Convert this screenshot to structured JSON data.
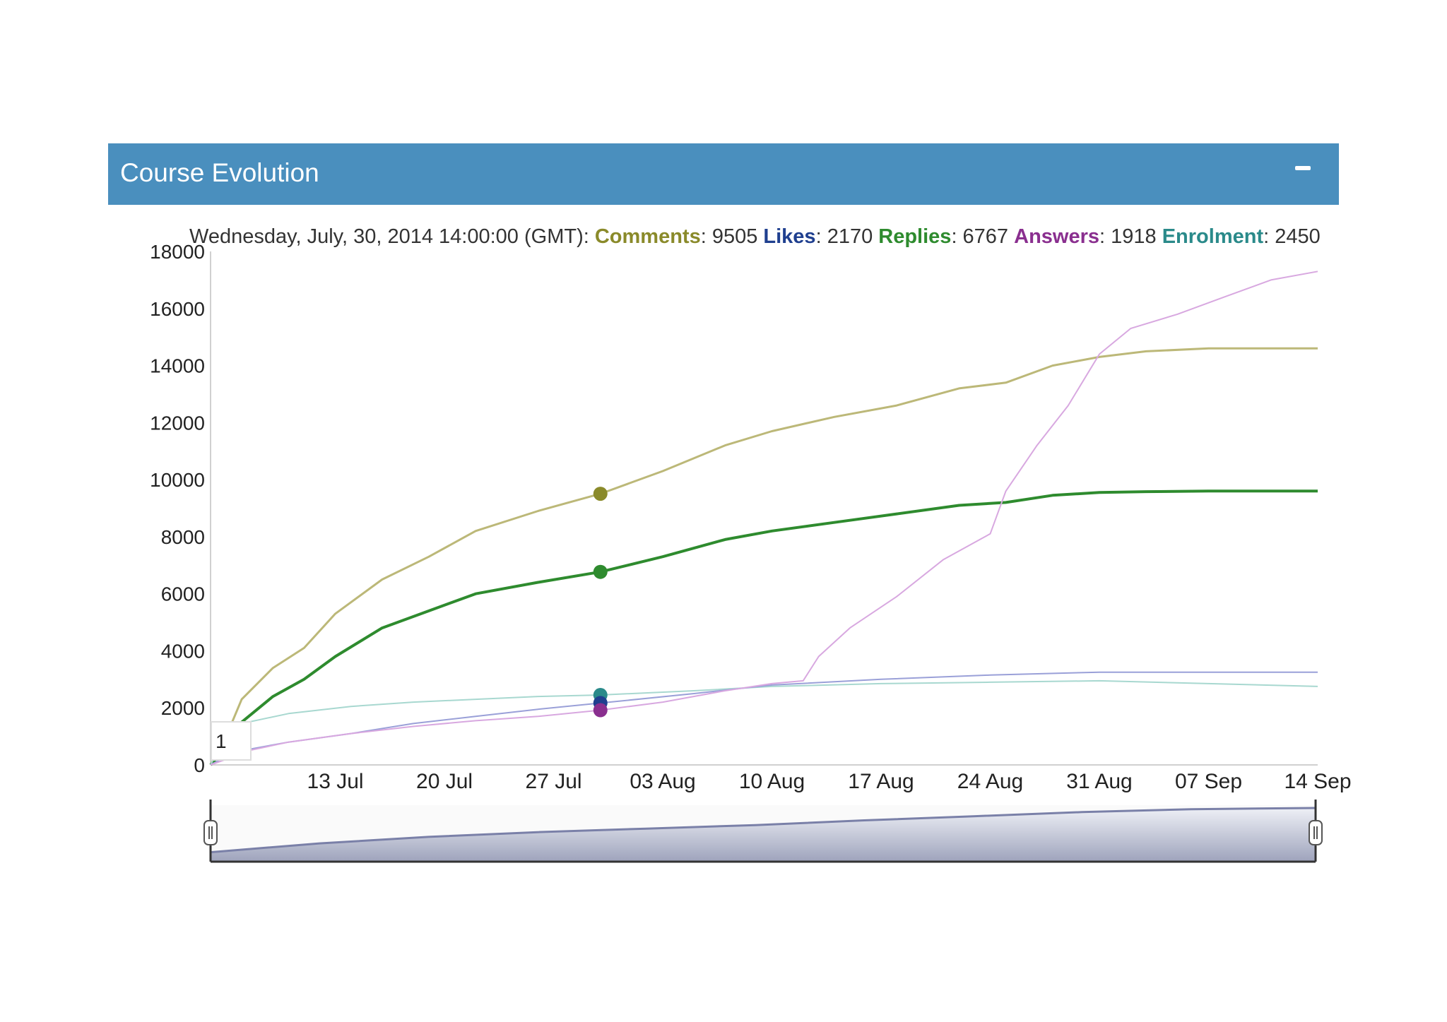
{
  "panel": {
    "title": "Course Evolution",
    "collapse_icon": "minus-icon"
  },
  "legend": {
    "date": "Wednesday, July, 30, 2014 14:00:00 (GMT)",
    "items": [
      {
        "name": "Comments",
        "value": "9505",
        "color": "#8a8a2a"
      },
      {
        "name": "Likes",
        "value": "2170",
        "color": "#1f3f8f"
      },
      {
        "name": "Replies",
        "value": "6767",
        "color": "#2e8b2e"
      },
      {
        "name": "Answers",
        "value": "1918",
        "color": "#8a2f8f"
      },
      {
        "name": "Enrolment",
        "value": "2450",
        "color": "#2a8a8a"
      }
    ]
  },
  "roll_period": "1",
  "chart_data": {
    "type": "line",
    "x_start": "2014-07-07",
    "x_end": "2014-09-14",
    "xlim": [
      "2014-07-05",
      "2014-09-14"
    ],
    "ylim": [
      0,
      18000
    ],
    "y_ticks": [
      0,
      2000,
      4000,
      6000,
      8000,
      10000,
      12000,
      14000,
      16000,
      18000
    ],
    "x_ticks": [
      {
        "date": "2014-07-13",
        "label": "13 Jul"
      },
      {
        "date": "2014-07-20",
        "label": "20 Jul"
      },
      {
        "date": "2014-07-27",
        "label": "27 Jul"
      },
      {
        "date": "2014-08-03",
        "label": "03 Aug"
      },
      {
        "date": "2014-08-10",
        "label": "10 Aug"
      },
      {
        "date": "2014-08-17",
        "label": "17 Aug"
      },
      {
        "date": "2014-08-24",
        "label": "24 Aug"
      },
      {
        "date": "2014-08-31",
        "label": "31 Aug"
      },
      {
        "date": "2014-09-07",
        "label": "07 Sep"
      },
      {
        "date": "2014-09-14",
        "label": "14 Sep"
      }
    ],
    "highlight_date": "2014-07-30",
    "series": [
      {
        "name": "Comments",
        "color": "#bcb878",
        "marker_color": "#8a8a2a",
        "width": 3,
        "x": [
          "2014-07-05",
          "2014-07-06",
          "2014-07-07",
          "2014-07-09",
          "2014-07-11",
          "2014-07-13",
          "2014-07-16",
          "2014-07-19",
          "2014-07-22",
          "2014-07-26",
          "2014-07-30",
          "2014-08-03",
          "2014-08-07",
          "2014-08-10",
          "2014-08-14",
          "2014-08-18",
          "2014-08-22",
          "2014-08-25",
          "2014-08-28",
          "2014-08-31",
          "2014-09-03",
          "2014-09-07",
          "2014-09-14"
        ],
        "y": [
          0,
          1000,
          2300,
          3400,
          4100,
          5300,
          6500,
          7300,
          8200,
          8900,
          9505,
          10300,
          11200,
          11700,
          12200,
          12600,
          13200,
          13400,
          14000,
          14300,
          14500,
          14600,
          14600
        ]
      },
      {
        "name": "Replies",
        "color": "#2e8b2e",
        "marker_color": "#2e8b2e",
        "width": 4,
        "x": [
          "2014-07-05",
          "2014-07-06",
          "2014-07-07",
          "2014-07-09",
          "2014-07-11",
          "2014-07-13",
          "2014-07-16",
          "2014-07-19",
          "2014-07-22",
          "2014-07-26",
          "2014-07-30",
          "2014-08-03",
          "2014-08-07",
          "2014-08-10",
          "2014-08-14",
          "2014-08-18",
          "2014-08-22",
          "2014-08-25",
          "2014-08-28",
          "2014-08-31",
          "2014-09-03",
          "2014-09-07",
          "2014-09-14"
        ],
        "y": [
          0,
          600,
          1500,
          2400,
          3000,
          3800,
          4800,
          5400,
          6000,
          6400,
          6767,
          7300,
          7900,
          8200,
          8500,
          8800,
          9100,
          9200,
          9450,
          9550,
          9580,
          9600,
          9600
        ]
      },
      {
        "name": "Enrolment",
        "color": "#a8d8d0",
        "marker_color": "#2a8a8a",
        "width": 2,
        "x": [
          "2014-07-05",
          "2014-07-06",
          "2014-07-07",
          "2014-07-10",
          "2014-07-14",
          "2014-07-18",
          "2014-07-22",
          "2014-07-26",
          "2014-07-30",
          "2014-08-05",
          "2014-08-10",
          "2014-08-17",
          "2014-08-24",
          "2014-08-31",
          "2014-09-07",
          "2014-09-14"
        ],
        "y": [
          0,
          1100,
          1450,
          1800,
          2050,
          2200,
          2300,
          2400,
          2450,
          2600,
          2750,
          2850,
          2900,
          2950,
          2850,
          2750
        ]
      },
      {
        "name": "Likes",
        "color": "#9aa0d8",
        "marker_color": "#1f3f8f",
        "width": 2,
        "x": [
          "2014-07-05",
          "2014-07-06",
          "2014-07-07",
          "2014-07-10",
          "2014-07-14",
          "2014-07-18",
          "2014-07-22",
          "2014-07-26",
          "2014-07-30",
          "2014-08-05",
          "2014-08-10",
          "2014-08-17",
          "2014-08-24",
          "2014-08-31",
          "2014-09-07",
          "2014-09-14"
        ],
        "y": [
          0,
          300,
          500,
          800,
          1100,
          1450,
          1700,
          1950,
          2170,
          2500,
          2800,
          3000,
          3150,
          3250,
          3250,
          3250
        ]
      },
      {
        "name": "Answers",
        "color": "#d8a8e0",
        "marker_color": "#8a2f8f",
        "width": 2,
        "x": [
          "2014-07-05",
          "2014-07-06",
          "2014-07-07",
          "2014-07-10",
          "2014-07-14",
          "2014-07-18",
          "2014-07-22",
          "2014-07-26",
          "2014-07-30",
          "2014-08-03",
          "2014-08-07",
          "2014-08-10",
          "2014-08-12",
          "2014-08-13",
          "2014-08-15",
          "2014-08-18",
          "2014-08-21",
          "2014-08-24",
          "2014-08-25",
          "2014-08-27",
          "2014-08-29",
          "2014-08-31",
          "2014-09-02",
          "2014-09-05",
          "2014-09-08",
          "2014-09-11",
          "2014-09-14"
        ],
        "y": [
          0,
          200,
          450,
          800,
          1100,
          1350,
          1550,
          1700,
          1918,
          2200,
          2600,
          2850,
          2950,
          3800,
          4800,
          5900,
          7200,
          8100,
          9600,
          11200,
          12600,
          14400,
          15300,
          15800,
          16400,
          17000,
          17300
        ]
      }
    ],
    "range_selector": {
      "x": [
        "2014-07-05",
        "2014-07-12",
        "2014-07-19",
        "2014-07-26",
        "2014-08-02",
        "2014-08-09",
        "2014-08-16",
        "2014-08-23",
        "2014-08-30",
        "2014-09-06",
        "2014-09-14"
      ],
      "y": [
        1600,
        3100,
        4200,
        5000,
        5600,
        6200,
        7000,
        7700,
        8400,
        8900,
        9100
      ]
    }
  }
}
